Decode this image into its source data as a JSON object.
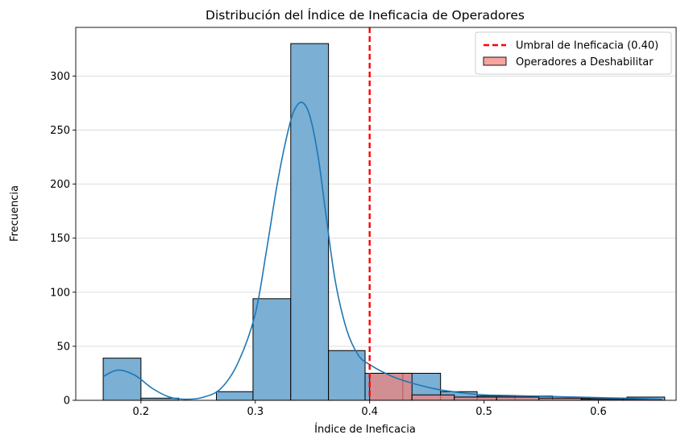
{
  "chart_data": {
    "type": "histogram",
    "title": "Distribución del Índice de Ineficacia de Operadores",
    "xlabel": "Índice de Ineficacia",
    "ylabel": "Frecuencia",
    "xlim": [
      0.143,
      0.668
    ],
    "ylim": [
      0,
      345
    ],
    "x_ticks": [
      0.2,
      0.3,
      0.4,
      0.5,
      0.6
    ],
    "x_tick_labels": [
      "0.2",
      "0.3",
      "0.4",
      "0.5",
      "0.6"
    ],
    "y_ticks": [
      0,
      50,
      100,
      150,
      200,
      250,
      300
    ],
    "y_tick_labels": [
      "0",
      "50",
      "100",
      "150",
      "200",
      "250",
      "300"
    ],
    "grid": "horizontal",
    "legend_position": "top-right",
    "colors": {
      "all_bars": "#7bafd4",
      "kde_line": "#1f77b4",
      "threshold_line": "#ff0000",
      "filtered_bars": "#f4827a"
    },
    "series": [
      {
        "name": "",
        "kind": "histogram",
        "bins": [
          {
            "x0": 0.167,
            "x1": 0.2,
            "count": 39
          },
          {
            "x0": 0.2,
            "x1": 0.233,
            "count": 2
          },
          {
            "x0": 0.233,
            "x1": 0.266,
            "count": 0
          },
          {
            "x0": 0.266,
            "x1": 0.298,
            "count": 8
          },
          {
            "x0": 0.298,
            "x1": 0.331,
            "count": 94
          },
          {
            "x0": 0.331,
            "x1": 0.364,
            "count": 330
          },
          {
            "x0": 0.364,
            "x1": 0.396,
            "count": 46
          },
          {
            "x0": 0.396,
            "x1": 0.429,
            "count": 25
          },
          {
            "x0": 0.429,
            "x1": 0.462,
            "count": 25
          },
          {
            "x0": 0.462,
            "x1": 0.494,
            "count": 8
          },
          {
            "x0": 0.494,
            "x1": 0.527,
            "count": 4
          },
          {
            "x0": 0.527,
            "x1": 0.56,
            "count": 4
          },
          {
            "x0": 0.56,
            "x1": 0.592,
            "count": 2
          },
          {
            "x0": 0.592,
            "x1": 0.625,
            "count": 2
          },
          {
            "x0": 0.625,
            "x1": 0.658,
            "count": 3
          }
        ]
      },
      {
        "name": "",
        "kind": "kde",
        "x": [
          0.167,
          0.18,
          0.195,
          0.21,
          0.225,
          0.24,
          0.255,
          0.27,
          0.285,
          0.3,
          0.31,
          0.32,
          0.33,
          0.336,
          0.342,
          0.348,
          0.355,
          0.362,
          0.37,
          0.38,
          0.39,
          0.4,
          0.42,
          0.44,
          0.46,
          0.48,
          0.5,
          0.52,
          0.54,
          0.56,
          0.58,
          0.6,
          0.62,
          0.64,
          0.655
        ],
        "y": [
          22,
          28,
          23,
          11,
          3,
          1,
          3,
          11,
          35,
          80,
          140,
          205,
          255,
          272,
          275,
          262,
          225,
          170,
          110,
          65,
          42,
          33,
          22,
          15,
          10,
          7,
          5,
          4.5,
          4,
          3.5,
          3,
          2.5,
          2,
          1.5,
          1
        ]
      },
      {
        "name": "Umbral de Ineficacia (0.40)",
        "kind": "vline",
        "x": 0.4
      },
      {
        "name": "Operadores a Deshabilitar",
        "kind": "histogram",
        "bins": [
          {
            "x0": 0.4,
            "x1": 0.437,
            "count": 25
          },
          {
            "x0": 0.437,
            "x1": 0.474,
            "count": 5
          },
          {
            "x0": 0.474,
            "x1": 0.511,
            "count": 3
          },
          {
            "x0": 0.511,
            "x1": 0.548,
            "count": 3
          },
          {
            "x0": 0.548,
            "x1": 0.585,
            "count": 2
          },
          {
            "x0": 0.585,
            "x1": 0.622,
            "count": 1
          },
          {
            "x0": 0.622,
            "x1": 0.655,
            "count": 1
          }
        ]
      }
    ]
  }
}
